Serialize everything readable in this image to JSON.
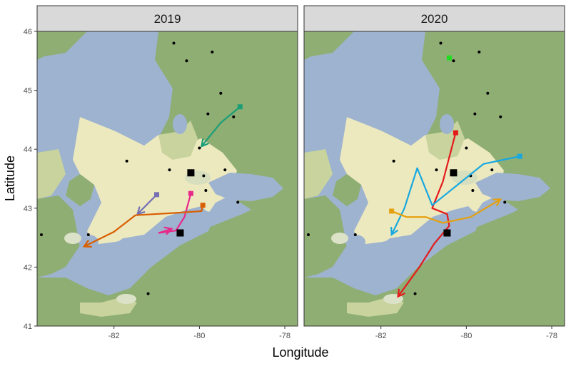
{
  "x_axis": {
    "title": "Longitude",
    "min": -83.8,
    "max": -77.7,
    "ticks": [
      -82,
      -80,
      -78
    ],
    "tick_labels": [
      "-82",
      "-80",
      "-78"
    ]
  },
  "y_axis": {
    "title": "Latitude",
    "min": 41,
    "max": 46,
    "ticks": [
      41,
      42,
      43,
      44,
      45,
      46
    ],
    "tick_labels": [
      "41",
      "42",
      "43",
      "44",
      "45",
      "46"
    ]
  },
  "colors": {
    "water": "#9db3cf",
    "land_low": "#ede9bf",
    "land_forest": "#8fae74",
    "land_mid": "#c8d39d",
    "strip_fill": "#d9d9d9",
    "strip_stroke": "#333333",
    "tick_color": "#333333"
  },
  "stations": [
    [
      -80.6,
      45.8
    ],
    [
      -79.7,
      45.65
    ],
    [
      -79.5,
      44.95
    ],
    [
      -79.2,
      44.55
    ],
    [
      -80.0,
      44.02
    ],
    [
      -81.7,
      43.8
    ],
    [
      -80.7,
      43.65
    ],
    [
      -79.9,
      43.55
    ],
    [
      -79.4,
      43.65
    ],
    [
      -79.85,
      43.3
    ],
    [
      -79.1,
      43.1
    ],
    [
      -80.5,
      42.6
    ],
    [
      -82.6,
      42.55
    ],
    [
      -83.7,
      42.55
    ],
    [
      -81.2,
      41.55
    ],
    [
      -80.3,
      45.5
    ],
    [
      -79.8,
      44.6
    ]
  ],
  "panels": [
    {
      "title": "2019",
      "hubs": [
        [
          -80.2,
          43.6
        ],
        [
          -80.45,
          42.58
        ]
      ],
      "tracks": [
        {
          "color": "#1b9e77",
          "points": [
            [
              -79.05,
              44.72
            ],
            [
              -79.5,
              44.45
            ],
            [
              -79.95,
              44.05
            ]
          ]
        },
        {
          "color": "#7570b3",
          "points": [
            [
              -81.0,
              43.23
            ],
            [
              -81.45,
              42.9
            ]
          ]
        },
        {
          "color": "#e7298a",
          "points": [
            [
              -80.2,
              43.25
            ],
            [
              -80.35,
              42.85
            ],
            [
              -80.55,
              42.62
            ],
            [
              -80.95,
              42.58
            ],
            [
              -80.65,
              42.65
            ]
          ]
        },
        {
          "color": "#d95f02",
          "points": [
            [
              -79.92,
              43.05
            ],
            [
              -79.95,
              42.95
            ],
            [
              -80.55,
              42.92
            ],
            [
              -81.5,
              42.88
            ],
            [
              -82.0,
              42.6
            ],
            [
              -82.7,
              42.35
            ]
          ]
        }
      ]
    },
    {
      "title": "2020",
      "hubs": [
        [
          -80.3,
          43.6
        ],
        [
          -80.45,
          42.58
        ]
      ],
      "tracks": [
        {
          "color": "#e41a1c",
          "points": [
            [
              -80.25,
              44.28
            ],
            [
              -80.55,
              43.45
            ],
            [
              -80.8,
              43.0
            ],
            [
              -80.45,
              42.9
            ],
            [
              -80.4,
              42.7
            ],
            [
              -80.75,
              42.4
            ],
            [
              -81.1,
              42.0
            ],
            [
              -81.6,
              41.5
            ]
          ]
        },
        {
          "color": "#17a8e0",
          "points": [
            [
              -78.75,
              43.88
            ],
            [
              -79.6,
              43.75
            ],
            [
              -80.8,
              43.05
            ],
            [
              -81.15,
              43.68
            ],
            [
              -81.45,
              43.0
            ],
            [
              -81.75,
              42.55
            ]
          ]
        },
        {
          "color": "#e5a00d",
          "points": [
            [
              -81.75,
              42.95
            ],
            [
              -81.4,
              42.85
            ],
            [
              -80.95,
              42.85
            ],
            [
              -80.55,
              42.75
            ],
            [
              -79.9,
              42.85
            ],
            [
              -79.2,
              43.15
            ]
          ]
        }
      ],
      "extra_square": {
        "color": "#22dd22",
        "point": [
          -80.4,
          45.55
        ]
      }
    }
  ]
}
